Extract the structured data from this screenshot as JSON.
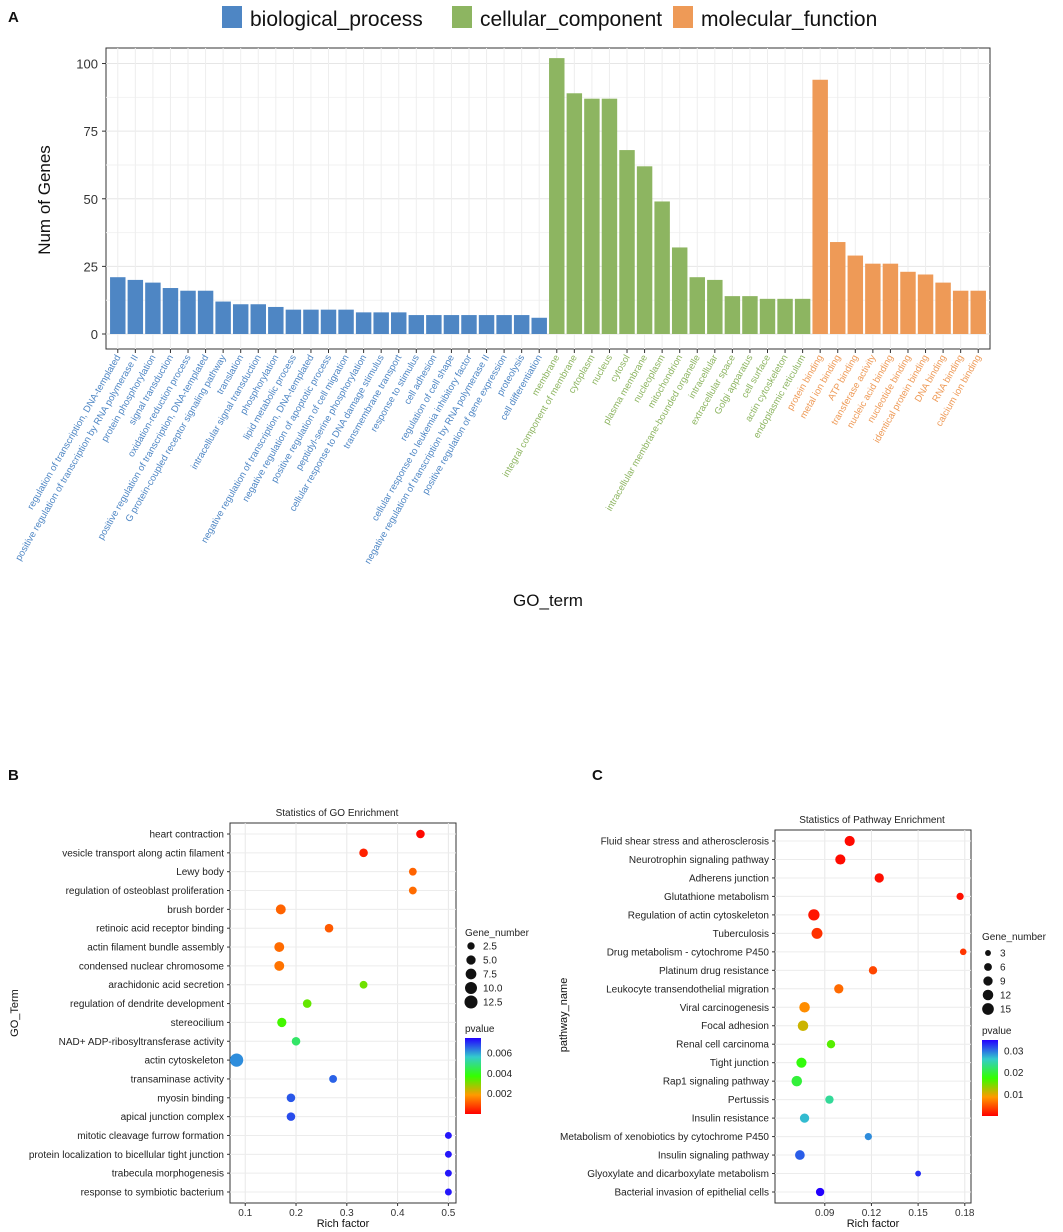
{
  "chart_data": [
    {
      "panel": "A",
      "type": "bar",
      "xlabel": "GO_term",
      "ylabel": "Num of Genes",
      "ylim": [
        0,
        105
      ],
      "yticks": [
        0,
        25,
        50,
        75,
        100
      ],
      "grid": true,
      "legend": {
        "position": "top",
        "entries": [
          "biological_process",
          "cellular_component",
          "molecular_function"
        ]
      },
      "colors": {
        "biological_process": "#4e86c4",
        "cellular_component": "#8db561",
        "molecular_function": "#ee9a57"
      },
      "categories": [
        {
          "label": "regulation of transcription, DNA-templated",
          "value": 21,
          "group": "biological_process"
        },
        {
          "label": "positive regulation of transcription by RNA polymerase II",
          "value": 20,
          "group": "biological_process"
        },
        {
          "label": "protein phosphorylation",
          "value": 19,
          "group": "biological_process"
        },
        {
          "label": "signal transduction",
          "value": 17,
          "group": "biological_process"
        },
        {
          "label": "oxidation-reduction process",
          "value": 16,
          "group": "biological_process"
        },
        {
          "label": "positive regulation of transcription, DNA-templated",
          "value": 16,
          "group": "biological_process"
        },
        {
          "label": "G protein-coupled receptor signaling pathway",
          "value": 12,
          "group": "biological_process"
        },
        {
          "label": "translation",
          "value": 11,
          "group": "biological_process"
        },
        {
          "label": "intracellular signal transduction",
          "value": 11,
          "group": "biological_process"
        },
        {
          "label": "phosphorylation",
          "value": 10,
          "group": "biological_process"
        },
        {
          "label": "lipid metabolic process",
          "value": 9,
          "group": "biological_process"
        },
        {
          "label": "negative regulation of transcription, DNA-templated",
          "value": 9,
          "group": "biological_process"
        },
        {
          "label": "negative regulation of apoptotic process",
          "value": 9,
          "group": "biological_process"
        },
        {
          "label": "positive regulation of cell migration",
          "value": 9,
          "group": "biological_process"
        },
        {
          "label": "peptidyl-serine phosphorylation",
          "value": 8,
          "group": "biological_process"
        },
        {
          "label": "cellular response to DNA damage stimulus",
          "value": 8,
          "group": "biological_process"
        },
        {
          "label": "transmembrane transport",
          "value": 8,
          "group": "biological_process"
        },
        {
          "label": "response to stimulus",
          "value": 7,
          "group": "biological_process"
        },
        {
          "label": "cell adhesion",
          "value": 7,
          "group": "biological_process"
        },
        {
          "label": "regulation of cell shape",
          "value": 7,
          "group": "biological_process"
        },
        {
          "label": "cellular response to leukemia inhibitory factor",
          "value": 7,
          "group": "biological_process"
        },
        {
          "label": "negative regulation of transcription by RNA polymerase II",
          "value": 7,
          "group": "biological_process"
        },
        {
          "label": "positive regulation of gene expression",
          "value": 7,
          "group": "biological_process"
        },
        {
          "label": "proteolysis",
          "value": 7,
          "group": "biological_process"
        },
        {
          "label": "cell differentiation",
          "value": 6,
          "group": "biological_process"
        },
        {
          "label": "membrane",
          "value": 102,
          "group": "cellular_component"
        },
        {
          "label": "integral component of membrane",
          "value": 89,
          "group": "cellular_component"
        },
        {
          "label": "cytoplasm",
          "value": 87,
          "group": "cellular_component"
        },
        {
          "label": "nucleus",
          "value": 87,
          "group": "cellular_component"
        },
        {
          "label": "cytosol",
          "value": 68,
          "group": "cellular_component"
        },
        {
          "label": "plasma membrane",
          "value": 62,
          "group": "cellular_component"
        },
        {
          "label": "nucleoplasm",
          "value": 49,
          "group": "cellular_component"
        },
        {
          "label": "mitochondrion",
          "value": 32,
          "group": "cellular_component"
        },
        {
          "label": "intracellular membrane-bounded organelle",
          "value": 21,
          "group": "cellular_component"
        },
        {
          "label": "intracellular",
          "value": 20,
          "group": "cellular_component"
        },
        {
          "label": "extracellular space",
          "value": 14,
          "group": "cellular_component"
        },
        {
          "label": "Golgi apparatus",
          "value": 14,
          "group": "cellular_component"
        },
        {
          "label": "cell surface",
          "value": 13,
          "group": "cellular_component"
        },
        {
          "label": "actin cytoskeleton",
          "value": 13,
          "group": "cellular_component"
        },
        {
          "label": "endoplasmic reticulum",
          "value": 13,
          "group": "cellular_component"
        },
        {
          "label": "protein binding",
          "value": 94,
          "group": "molecular_function"
        },
        {
          "label": "metal ion binding",
          "value": 34,
          "group": "molecular_function"
        },
        {
          "label": "ATP binding",
          "value": 29,
          "group": "molecular_function"
        },
        {
          "label": "transferase activity",
          "value": 26,
          "group": "molecular_function"
        },
        {
          "label": "nucleic acid binding",
          "value": 26,
          "group": "molecular_function"
        },
        {
          "label": "nucleotide binding",
          "value": 23,
          "group": "molecular_function"
        },
        {
          "label": "identical protein binding",
          "value": 22,
          "group": "molecular_function"
        },
        {
          "label": "DNA binding",
          "value": 19,
          "group": "molecular_function"
        },
        {
          "label": "RNA binding",
          "value": 16,
          "group": "molecular_function"
        },
        {
          "label": "calcium ion binding",
          "value": 16,
          "group": "molecular_function"
        }
      ]
    },
    {
      "panel": "B",
      "type": "scatter",
      "title": "Statistics of GO Enrichment",
      "xlabel": "Rich factor",
      "ylabel": "GO_Term",
      "xlim": [
        0.07,
        0.515
      ],
      "xticks": [
        0.1,
        0.2,
        0.3,
        0.4,
        0.5
      ],
      "xtick_labels": [
        "0.1",
        "0.2",
        "0.3",
        "0.4",
        "0.5"
      ],
      "size_legend": {
        "title": "Gene_number",
        "values": [
          2.5,
          5.0,
          7.5,
          10.0,
          12.5
        ],
        "labels": [
          "2.5",
          "5.0",
          "7.5",
          "10.0",
          "12.5"
        ]
      },
      "color_legend": {
        "title": "pvalue",
        "min": 0,
        "max": 0.0075,
        "ticks": [
          0.002,
          0.004,
          0.006
        ],
        "labels": [
          "0.002",
          "0.004",
          "0.006"
        ]
      },
      "points": [
        {
          "term": "heart contraction",
          "rich": 0.445,
          "genes": 4,
          "pvalue": 0.0001
        },
        {
          "term": "vesicle transport along actin filament",
          "rich": 0.333,
          "genes": 4,
          "pvalue": 0.0004
        },
        {
          "term": "Lewy body",
          "rich": 0.43,
          "genes": 3,
          "pvalue": 0.0012
        },
        {
          "term": "regulation of osteoblast proliferation",
          "rich": 0.43,
          "genes": 3,
          "pvalue": 0.0013
        },
        {
          "term": "brush border",
          "rich": 0.17,
          "genes": 6,
          "pvalue": 0.0012
        },
        {
          "term": "retinoic acid receptor binding",
          "rich": 0.265,
          "genes": 4,
          "pvalue": 0.0011
        },
        {
          "term": "actin filament bundle assembly",
          "rich": 0.167,
          "genes": 6,
          "pvalue": 0.0013
        },
        {
          "term": "condensed nuclear chromosome",
          "rich": 0.167,
          "genes": 6,
          "pvalue": 0.0014
        },
        {
          "term": "arachidonic acid secretion",
          "rich": 0.333,
          "genes": 3,
          "pvalue": 0.0032
        },
        {
          "term": "regulation of dendrite development",
          "rich": 0.222,
          "genes": 4,
          "pvalue": 0.0033
        },
        {
          "term": "stereocilium",
          "rich": 0.172,
          "genes": 5,
          "pvalue": 0.0036
        },
        {
          "term": "NAD+ ADP-ribosyltransferase activity",
          "rich": 0.2,
          "genes": 4,
          "pvalue": 0.0047
        },
        {
          "term": "actin cytoskeleton",
          "rich": 0.083,
          "genes": 13,
          "pvalue": 0.0062
        },
        {
          "term": "transaminase activity",
          "rich": 0.273,
          "genes": 3,
          "pvalue": 0.0066
        },
        {
          "term": "myosin binding",
          "rich": 0.19,
          "genes": 4,
          "pvalue": 0.0067
        },
        {
          "term": "apical junction complex",
          "rich": 0.19,
          "genes": 4,
          "pvalue": 0.0068
        },
        {
          "term": "mitotic cleavage furrow formation",
          "rich": 0.5,
          "genes": 2,
          "pvalue": 0.0073
        },
        {
          "term": "protein localization to bicellular tight junction",
          "rich": 0.5,
          "genes": 2,
          "pvalue": 0.0073
        },
        {
          "term": "trabecula morphogenesis",
          "rich": 0.5,
          "genes": 2,
          "pvalue": 0.0073
        },
        {
          "term": "response to symbiotic bacterium",
          "rich": 0.5,
          "genes": 2,
          "pvalue": 0.0073
        }
      ]
    },
    {
      "panel": "C",
      "type": "scatter",
      "title": "Statistics of Pathway Enrichment",
      "xlabel": "Rich factor",
      "ylabel": "pathway_name",
      "xlim": [
        0.058,
        0.184
      ],
      "xticks": [
        0.09,
        0.12,
        0.15,
        0.18
      ],
      "xtick_labels": [
        "0.09",
        "0.12",
        "0.15",
        "0.18"
      ],
      "size_legend": {
        "title": "Gene_number",
        "values": [
          3,
          6,
          9,
          12,
          15
        ],
        "labels": [
          "3",
          "6",
          "9",
          "12",
          "15"
        ]
      },
      "color_legend": {
        "title": "pvalue",
        "min": 0,
        "max": 0.035,
        "ticks": [
          0.01,
          0.02,
          0.03
        ],
        "labels": [
          "0.01",
          "0.02",
          "0.03"
        ]
      },
      "points": [
        {
          "pathway": "Fluid shear stress and atherosclerosis",
          "rich": 0.106,
          "genes": 11,
          "pvalue": 0.0005
        },
        {
          "pathway": "Neurotrophin signaling pathway",
          "rich": 0.1,
          "genes": 11,
          "pvalue": 0.0006
        },
        {
          "pathway": "Adherens junction",
          "rich": 0.125,
          "genes": 9,
          "pvalue": 0.0008
        },
        {
          "pathway": "Glutathione metabolism",
          "rich": 0.177,
          "genes": 5,
          "pvalue": 0.0009
        },
        {
          "pathway": "Regulation of actin cytoskeleton",
          "rich": 0.083,
          "genes": 14,
          "pvalue": 0.0012
        },
        {
          "pathway": "Tuberculosis",
          "rich": 0.085,
          "genes": 13,
          "pvalue": 0.0028
        },
        {
          "pathway": "Drug metabolism - cytochrome P450",
          "rich": 0.179,
          "genes": 4,
          "pvalue": 0.003
        },
        {
          "pathway": "Platinum drug resistance",
          "rich": 0.121,
          "genes": 7,
          "pvalue": 0.004
        },
        {
          "pathway": "Leukocyte transendothelial migration",
          "rich": 0.099,
          "genes": 9,
          "pvalue": 0.006
        },
        {
          "pathway": "Viral carcinogenesis",
          "rich": 0.077,
          "genes": 12,
          "pvalue": 0.008
        },
        {
          "pathway": "Focal adhesion",
          "rich": 0.076,
          "genes": 12,
          "pvalue": 0.011
        },
        {
          "pathway": "Renal cell carcinoma",
          "rich": 0.094,
          "genes": 7,
          "pvalue": 0.016
        },
        {
          "pathway": "Tight junction",
          "rich": 0.075,
          "genes": 11,
          "pvalue": 0.018
        },
        {
          "pathway": "Rap1 signaling pathway",
          "rich": 0.072,
          "genes": 12,
          "pvalue": 0.02
        },
        {
          "pathway": "Pertussis",
          "rich": 0.093,
          "genes": 7,
          "pvalue": 0.024
        },
        {
          "pathway": "Insulin resistance",
          "rich": 0.077,
          "genes": 9,
          "pvalue": 0.027
        },
        {
          "pathway": "Metabolism of xenobiotics by cytochrome P450",
          "rich": 0.118,
          "genes": 5,
          "pvalue": 0.029
        },
        {
          "pathway": "Insulin signaling pathway",
          "rich": 0.074,
          "genes": 10,
          "pvalue": 0.031
        },
        {
          "pathway": "Glyoxylate and dicarboxylate metabolism",
          "rich": 0.15,
          "genes": 3,
          "pvalue": 0.033
        },
        {
          "pathway": "Bacterial invasion of epithelial cells",
          "rich": 0.087,
          "genes": 7,
          "pvalue": 0.035
        }
      ]
    }
  ],
  "panel_labels": [
    "A",
    "B",
    "C"
  ]
}
